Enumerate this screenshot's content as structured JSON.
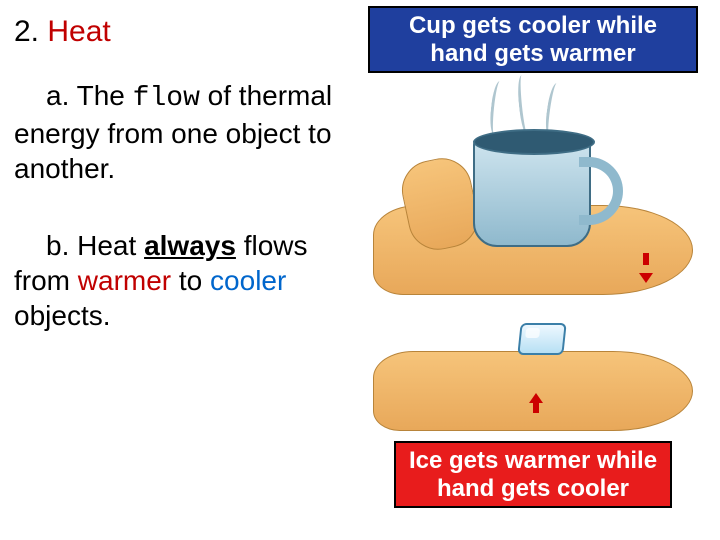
{
  "heading": {
    "number": "2.",
    "term": "Heat"
  },
  "definition": {
    "prefix": "a.  The ",
    "flow_word": "flow",
    "rest": " of thermal energy from one object to another."
  },
  "rule": {
    "prefix": "b.  Heat ",
    "always": "always",
    "mid": " flows from ",
    "warmer": "warmer",
    "to": " to ",
    "cooler": "cooler",
    "end": " objects."
  },
  "captions": {
    "top": "Cup gets cooler while hand gets warmer",
    "bottom": "Ice gets warmer while hand gets cooler"
  },
  "colors": {
    "heat_red": "#c00000",
    "cool_blue": "#0066cc",
    "caption_top_bg": "#1f3f9e",
    "caption_bottom_bg": "#e81c1c",
    "arrow": "#cc0000"
  }
}
